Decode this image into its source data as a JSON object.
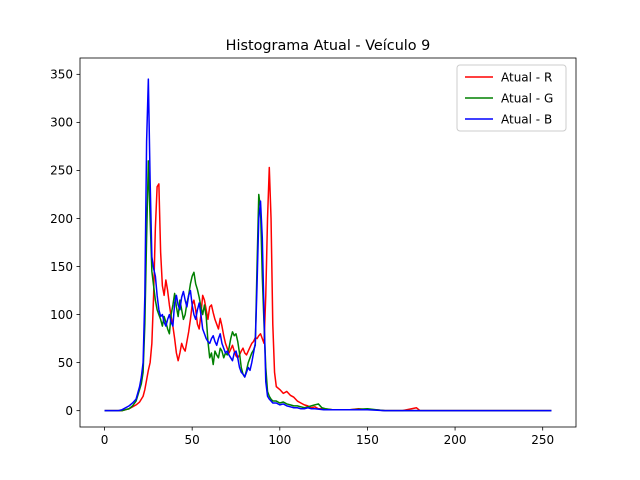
{
  "chart_data": {
    "type": "line",
    "title": "Histograma Atual - Veículo 9",
    "xlabel": "",
    "ylabel": "",
    "xlim": [
      -14,
      269
    ],
    "ylim": [
      -17,
      367
    ],
    "xticks": [
      0,
      50,
      100,
      150,
      200,
      250
    ],
    "yticks": [
      0,
      50,
      100,
      150,
      200,
      250,
      300,
      350
    ],
    "grid": false,
    "legend": "top-right",
    "series": [
      {
        "name": "Atual - R",
        "color": "#ff0000",
        "points": [
          [
            0,
            0
          ],
          [
            10,
            0
          ],
          [
            12,
            1
          ],
          [
            14,
            2
          ],
          [
            16,
            4
          ],
          [
            18,
            6
          ],
          [
            20,
            9
          ],
          [
            21,
            12
          ],
          [
            22,
            15
          ],
          [
            23,
            22
          ],
          [
            24,
            32
          ],
          [
            25,
            42
          ],
          [
            26,
            50
          ],
          [
            27,
            70
          ],
          [
            28,
            120
          ],
          [
            29,
            190
          ],
          [
            30,
            233
          ],
          [
            31,
            236
          ],
          [
            32,
            165
          ],
          [
            33,
            130
          ],
          [
            34,
            120
          ],
          [
            35,
            136
          ],
          [
            36,
            125
          ],
          [
            37,
            110
          ],
          [
            38,
            98
          ],
          [
            39,
            88
          ],
          [
            40,
            75
          ],
          [
            41,
            60
          ],
          [
            42,
            52
          ],
          [
            43,
            60
          ],
          [
            44,
            70
          ],
          [
            45,
            65
          ],
          [
            46,
            62
          ],
          [
            47,
            72
          ],
          [
            48,
            82
          ],
          [
            49,
            95
          ],
          [
            50,
            110
          ],
          [
            51,
            115
          ],
          [
            52,
            105
          ],
          [
            53,
            90
          ],
          [
            54,
            85
          ],
          [
            55,
            100
          ],
          [
            56,
            120
          ],
          [
            57,
            115
          ],
          [
            58,
            105
          ],
          [
            59,
            95
          ],
          [
            60,
            108
          ],
          [
            61,
            110
          ],
          [
            62,
            102
          ],
          [
            63,
            95
          ],
          [
            64,
            90
          ],
          [
            65,
            85
          ],
          [
            66,
            96
          ],
          [
            67,
            88
          ],
          [
            68,
            78
          ],
          [
            69,
            70
          ],
          [
            70,
            65
          ],
          [
            71,
            60
          ],
          [
            72,
            64
          ],
          [
            73,
            68
          ],
          [
            74,
            62
          ],
          [
            75,
            57
          ],
          [
            76,
            55
          ],
          [
            77,
            58
          ],
          [
            78,
            62
          ],
          [
            79,
            65
          ],
          [
            80,
            60
          ],
          [
            81,
            58
          ],
          [
            82,
            62
          ],
          [
            83,
            66
          ],
          [
            84,
            70
          ],
          [
            85,
            72
          ],
          [
            86,
            76
          ],
          [
            87,
            75
          ],
          [
            88,
            78
          ],
          [
            89,
            80
          ],
          [
            90,
            75
          ],
          [
            91,
            70
          ],
          [
            92,
            120
          ],
          [
            93,
            200
          ],
          [
            94,
            253
          ],
          [
            95,
            200
          ],
          [
            96,
            90
          ],
          [
            97,
            40
          ],
          [
            98,
            25
          ],
          [
            100,
            22
          ],
          [
            102,
            18
          ],
          [
            104,
            20
          ],
          [
            106,
            16
          ],
          [
            108,
            14
          ],
          [
            110,
            10
          ],
          [
            112,
            8
          ],
          [
            114,
            6
          ],
          [
            116,
            5
          ],
          [
            118,
            3
          ],
          [
            120,
            4
          ],
          [
            122,
            2
          ],
          [
            125,
            2
          ],
          [
            130,
            1
          ],
          [
            135,
            1
          ],
          [
            140,
            1
          ],
          [
            145,
            2
          ],
          [
            150,
            1
          ],
          [
            155,
            1
          ],
          [
            160,
            0
          ],
          [
            170,
            0
          ],
          [
            178,
            3
          ],
          [
            180,
            0
          ],
          [
            190,
            0
          ],
          [
            200,
            0
          ],
          [
            210,
            0
          ],
          [
            220,
            0
          ],
          [
            230,
            0
          ],
          [
            240,
            0
          ],
          [
            255,
            0
          ]
        ]
      },
      {
        "name": "Atual - G",
        "color": "#008000",
        "points": [
          [
            0,
            0
          ],
          [
            10,
            0
          ],
          [
            12,
            1
          ],
          [
            14,
            2
          ],
          [
            16,
            5
          ],
          [
            18,
            10
          ],
          [
            20,
            22
          ],
          [
            21,
            28
          ],
          [
            22,
            40
          ],
          [
            23,
            90
          ],
          [
            24,
            180
          ],
          [
            25,
            260
          ],
          [
            26,
            200
          ],
          [
            27,
            145
          ],
          [
            28,
            130
          ],
          [
            29,
            115
          ],
          [
            30,
            105
          ],
          [
            31,
            100
          ],
          [
            32,
            95
          ],
          [
            33,
            88
          ],
          [
            34,
            98
          ],
          [
            35,
            92
          ],
          [
            36,
            85
          ],
          [
            37,
            80
          ],
          [
            38,
            100
          ],
          [
            39,
            110
          ],
          [
            40,
            122
          ],
          [
            41,
            108
          ],
          [
            42,
            98
          ],
          [
            43,
            115
          ],
          [
            44,
            105
          ],
          [
            45,
            95
          ],
          [
            46,
            100
          ],
          [
            47,
            112
          ],
          [
            48,
            120
          ],
          [
            49,
            132
          ],
          [
            50,
            140
          ],
          [
            51,
            144
          ],
          [
            52,
            132
          ],
          [
            53,
            126
          ],
          [
            54,
            118
          ],
          [
            55,
            108
          ],
          [
            56,
            100
          ],
          [
            57,
            110
          ],
          [
            58,
            98
          ],
          [
            59,
            72
          ],
          [
            60,
            55
          ],
          [
            61,
            60
          ],
          [
            62,
            48
          ],
          [
            63,
            62
          ],
          [
            64,
            58
          ],
          [
            65,
            55
          ],
          [
            66,
            65
          ],
          [
            67,
            62
          ],
          [
            68,
            55
          ],
          [
            69,
            60
          ],
          [
            70,
            58
          ],
          [
            71,
            65
          ],
          [
            72,
            75
          ],
          [
            73,
            82
          ],
          [
            74,
            78
          ],
          [
            75,
            80
          ],
          [
            76,
            72
          ],
          [
            77,
            60
          ],
          [
            78,
            45
          ],
          [
            79,
            38
          ],
          [
            80,
            35
          ],
          [
            81,
            42
          ],
          [
            82,
            50
          ],
          [
            83,
            55
          ],
          [
            84,
            60
          ],
          [
            85,
            63
          ],
          [
            86,
            68
          ],
          [
            87,
            150
          ],
          [
            88,
            225
          ],
          [
            89,
            210
          ],
          [
            90,
            140
          ],
          [
            91,
            90
          ],
          [
            92,
            45
          ],
          [
            93,
            20
          ],
          [
            94,
            15
          ],
          [
            95,
            12
          ],
          [
            96,
            10
          ],
          [
            98,
            10
          ],
          [
            100,
            8
          ],
          [
            102,
            9
          ],
          [
            104,
            7
          ],
          [
            106,
            6
          ],
          [
            108,
            5
          ],
          [
            110,
            5
          ],
          [
            112,
            4
          ],
          [
            114,
            3
          ],
          [
            116,
            4
          ],
          [
            118,
            5
          ],
          [
            120,
            6
          ],
          [
            122,
            7
          ],
          [
            124,
            3
          ],
          [
            126,
            2
          ],
          [
            130,
            1
          ],
          [
            140,
            1
          ],
          [
            150,
            2
          ],
          [
            155,
            1
          ],
          [
            160,
            0
          ],
          [
            170,
            0
          ],
          [
            180,
            0
          ],
          [
            190,
            0
          ],
          [
            200,
            0
          ],
          [
            210,
            0
          ],
          [
            220,
            0
          ],
          [
            230,
            0
          ],
          [
            240,
            0
          ],
          [
            255,
            0
          ]
        ]
      },
      {
        "name": "Atual - B",
        "color": "#0000ff",
        "points": [
          [
            0,
            0
          ],
          [
            8,
            0
          ],
          [
            10,
            1
          ],
          [
            12,
            3
          ],
          [
            14,
            5
          ],
          [
            16,
            8
          ],
          [
            18,
            12
          ],
          [
            20,
            25
          ],
          [
            21,
            35
          ],
          [
            22,
            50
          ],
          [
            23,
            120
          ],
          [
            24,
            280
          ],
          [
            25,
            345
          ],
          [
            26,
            240
          ],
          [
            27,
            160
          ],
          [
            28,
            148
          ],
          [
            29,
            140
          ],
          [
            30,
            120
          ],
          [
            31,
            105
          ],
          [
            32,
            98
          ],
          [
            33,
            100
          ],
          [
            34,
            92
          ],
          [
            35,
            88
          ],
          [
            36,
            95
          ],
          [
            37,
            100
          ],
          [
            38,
            92
          ],
          [
            39,
            88
          ],
          [
            40,
            112
          ],
          [
            41,
            120
          ],
          [
            42,
            110
          ],
          [
            43,
            105
          ],
          [
            44,
            118
          ],
          [
            45,
            124
          ],
          [
            46,
            115
          ],
          [
            47,
            108
          ],
          [
            48,
            120
          ],
          [
            49,
            125
          ],
          [
            50,
            110
          ],
          [
            51,
            100
          ],
          [
            52,
            95
          ],
          [
            53,
            105
          ],
          [
            54,
            112
          ],
          [
            55,
            100
          ],
          [
            56,
            85
          ],
          [
            57,
            80
          ],
          [
            58,
            75
          ],
          [
            59,
            72
          ],
          [
            60,
            70
          ],
          [
            61,
            75
          ],
          [
            62,
            78
          ],
          [
            63,
            72
          ],
          [
            64,
            68
          ],
          [
            65,
            75
          ],
          [
            66,
            80
          ],
          [
            67,
            70
          ],
          [
            68,
            65
          ],
          [
            69,
            60
          ],
          [
            70,
            62
          ],
          [
            71,
            58
          ],
          [
            72,
            55
          ],
          [
            73,
            52
          ],
          [
            74,
            60
          ],
          [
            75,
            62
          ],
          [
            76,
            55
          ],
          [
            77,
            45
          ],
          [
            78,
            40
          ],
          [
            79,
            38
          ],
          [
            80,
            35
          ],
          [
            81,
            40
          ],
          [
            82,
            45
          ],
          [
            83,
            42
          ],
          [
            84,
            50
          ],
          [
            85,
            60
          ],
          [
            86,
            70
          ],
          [
            87,
            130
          ],
          [
            88,
            200
          ],
          [
            89,
            218
          ],
          [
            90,
            180
          ],
          [
            91,
            100
          ],
          [
            92,
            30
          ],
          [
            93,
            15
          ],
          [
            94,
            12
          ],
          [
            95,
            10
          ],
          [
            96,
            8
          ],
          [
            98,
            8
          ],
          [
            100,
            6
          ],
          [
            102,
            7
          ],
          [
            104,
            5
          ],
          [
            106,
            4
          ],
          [
            108,
            3
          ],
          [
            110,
            3
          ],
          [
            112,
            2
          ],
          [
            114,
            2
          ],
          [
            116,
            3
          ],
          [
            118,
            2
          ],
          [
            120,
            2
          ],
          [
            125,
            1
          ],
          [
            130,
            1
          ],
          [
            140,
            1
          ],
          [
            150,
            1
          ],
          [
            160,
            0
          ],
          [
            170,
            0
          ],
          [
            180,
            0
          ],
          [
            190,
            0
          ],
          [
            200,
            0
          ],
          [
            210,
            0
          ],
          [
            220,
            0
          ],
          [
            230,
            0
          ],
          [
            240,
            0
          ],
          [
            255,
            0
          ]
        ]
      }
    ]
  }
}
